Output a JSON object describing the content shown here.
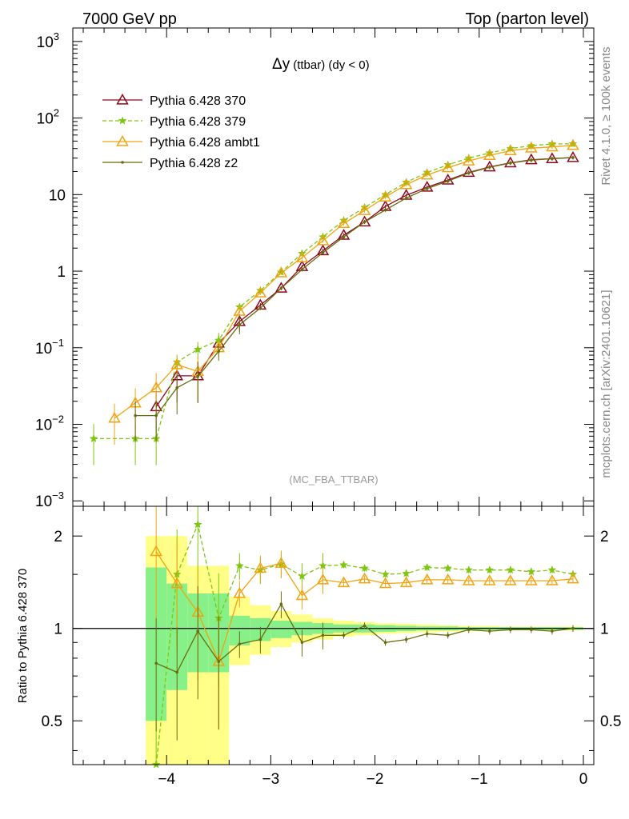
{
  "header": {
    "energy_label": "7000 GeV pp",
    "process_label": "Top (parton level)"
  },
  "side_labels": {
    "rivet": "Rivet 4.1.0, ≥ 100k events",
    "mcplots": "mcplots.cern.ch [arXiv:2401.10621]"
  },
  "chart_data": [
    {
      "type": "line",
      "panel": "main",
      "title_main": "Δy",
      "title_sub": "(ttbar) (dy < 0)",
      "watermark": "(MC_FBA_TTBAR)",
      "yscale": "log",
      "ylim": [
        0.00085,
        1500
      ],
      "xlim": [
        -4.9,
        0.1
      ],
      "y_ticks": [
        {
          "v": 0.001,
          "base": "10",
          "exp": "−3"
        },
        {
          "v": 0.01,
          "base": "10",
          "exp": "−2"
        },
        {
          "v": 0.1,
          "base": "10",
          "exp": "−1"
        },
        {
          "v": 1,
          "base": "1",
          "exp": ""
        },
        {
          "v": 10,
          "base": "10",
          "exp": ""
        },
        {
          "v": 100,
          "base": "10",
          "exp": "2"
        },
        {
          "v": 1000,
          "base": "10",
          "exp": "3"
        }
      ],
      "series": [
        {
          "name": "Pythia 6.428 370",
          "color": "#8b0a1e",
          "marker": "triangle",
          "dash": "",
          "x": [
            -4.1,
            -3.9,
            -3.7,
            -3.5,
            -3.3,
            -3.1,
            -2.9,
            -2.7,
            -2.5,
            -2.3,
            -2.1,
            -1.9,
            -1.7,
            -1.5,
            -1.3,
            -1.1,
            -0.9,
            -0.7,
            -0.5,
            -0.3,
            -0.1
          ],
          "y": [
            0.017,
            0.043,
            0.043,
            0.115,
            0.22,
            0.36,
            0.6,
            1.15,
            1.85,
            2.95,
            4.4,
            7.0,
            9.8,
            12.5,
            15.5,
            19.5,
            23.0,
            26.0,
            28.5,
            29.5,
            30.5
          ]
        },
        {
          "name": "Pythia 6.428 379",
          "color": "#7ec60f",
          "marker": "star",
          "dash": "5,3",
          "x": [
            -4.7,
            -4.3,
            -4.1,
            -3.9,
            -3.7,
            -3.5,
            -3.3,
            -3.1,
            -2.9,
            -2.7,
            -2.5,
            -2.3,
            -2.1,
            -1.9,
            -1.7,
            -1.5,
            -1.3,
            -1.1,
            -0.9,
            -0.7,
            -0.5,
            -0.3,
            -0.1
          ],
          "y": [
            0.0065,
            0.0065,
            0.0065,
            0.065,
            0.095,
            0.125,
            0.34,
            0.56,
            0.97,
            1.7,
            2.8,
            4.6,
            6.8,
            10.0,
            14.5,
            19.5,
            24.5,
            30.0,
            35.0,
            40.0,
            43.5,
            46.0,
            46.0
          ]
        },
        {
          "name": "Pythia 6.428 ambt1",
          "color": "#f0a411",
          "marker": "triangle-open-orange",
          "dash": "",
          "x": [
            -4.5,
            -4.3,
            -4.1,
            -3.9,
            -3.7,
            -3.5,
            -3.3,
            -3.1,
            -2.9,
            -2.7,
            -2.5,
            -2.3,
            -2.1,
            -1.9,
            -1.7,
            -1.5,
            -1.3,
            -1.1,
            -0.9,
            -0.7,
            -0.5,
            -0.3,
            -0.1
          ],
          "y": [
            0.012,
            0.019,
            0.03,
            0.06,
            0.049,
            0.1,
            0.3,
            0.52,
            0.95,
            1.5,
            2.5,
            4.2,
            6.2,
            9.3,
            13.5,
            18.0,
            22.5,
            27.5,
            32.5,
            37.5,
            40.5,
            42.0,
            44.0
          ]
        },
        {
          "name": "Pythia 6.428 z2",
          "color": "#6b6b0f",
          "marker": "dot",
          "dash": "",
          "x": [
            -4.3,
            -4.1,
            -3.9,
            -3.7,
            -3.5,
            -3.3,
            -3.1,
            -2.9,
            -2.7,
            -2.5,
            -2.3,
            -2.1,
            -1.9,
            -1.7,
            -1.5,
            -1.3,
            -1.1,
            -0.9,
            -0.7,
            -0.5,
            -0.3,
            -0.1
          ],
          "y": [
            0.013,
            0.013,
            0.03,
            0.042,
            0.09,
            0.2,
            0.33,
            0.6,
            1.05,
            1.75,
            2.8,
            4.4,
            6.3,
            9.0,
            12.0,
            15.0,
            19.2,
            22.8,
            25.8,
            28.2,
            29.5,
            30.5
          ]
        }
      ]
    },
    {
      "type": "line",
      "panel": "ratio",
      "ylabel": "Ratio to Pythia 6.428 370",
      "yscale": "log",
      "ylim": [
        0.36,
        2.5
      ],
      "xlim": [
        -4.9,
        0.1
      ],
      "y_ticks": [
        0.5,
        1,
        2
      ],
      "y_tick_labels": [
        "0.5",
        "1",
        "2"
      ],
      "x_ticks": [
        -4,
        -3,
        -2,
        -1,
        0
      ],
      "x_tick_labels": [
        "−4",
        "−3",
        "−2",
        "−1",
        "0"
      ],
      "band_x_edges": [
        -4.2,
        -4.0,
        -3.8,
        -3.6,
        -3.4,
        -3.2,
        -3.0,
        -2.8,
        -2.6,
        -2.4,
        -2.2,
        -2.0,
        -1.8,
        -1.6,
        -1.4,
        -1.2,
        -1.0,
        -0.8,
        -0.6,
        -0.4,
        -0.2,
        0.0
      ],
      "band_green_lo": [
        0.5,
        0.63,
        0.72,
        0.72,
        0.88,
        0.91,
        0.93,
        0.95,
        0.96,
        0.97,
        0.97,
        0.975,
        0.98,
        0.985,
        0.985,
        0.99,
        0.99,
        0.99,
        0.99,
        0.99,
        0.99
      ],
      "band_green_hi": [
        1.58,
        1.4,
        1.3,
        1.3,
        1.1,
        1.08,
        1.06,
        1.05,
        1.04,
        1.03,
        1.03,
        1.025,
        1.02,
        1.015,
        1.015,
        1.01,
        1.01,
        1.01,
        1.01,
        1.01,
        1.01
      ],
      "band_yellow_lo": [
        0.3,
        0.3,
        0.3,
        0.3,
        0.76,
        0.82,
        0.87,
        0.9,
        0.92,
        0.94,
        0.95,
        0.96,
        0.965,
        0.97,
        0.975,
        0.98,
        0.98,
        0.985,
        0.985,
        0.985,
        0.985
      ],
      "band_yellow_hi": [
        2.0,
        2.0,
        1.6,
        1.6,
        1.27,
        1.19,
        1.14,
        1.11,
        1.08,
        1.06,
        1.05,
        1.04,
        1.035,
        1.03,
        1.025,
        1.02,
        1.02,
        1.015,
        1.015,
        1.015,
        1.015
      ],
      "series": [
        {
          "name": "Pythia 6.428 379",
          "color": "#7ec60f",
          "marker": "star",
          "dash": "5,3",
          "x": [
            -4.1,
            -3.9,
            -3.7,
            -3.5,
            -3.3,
            -3.1,
            -2.9,
            -2.7,
            -2.5,
            -2.3,
            -2.1,
            -1.9,
            -1.7,
            -1.5,
            -1.3,
            -1.1,
            -0.9,
            -0.7,
            -0.5,
            -0.3,
            -0.1
          ],
          "y": [
            0.36,
            1.5,
            2.18,
            1.08,
            1.6,
            1.55,
            1.62,
            1.48,
            1.6,
            1.61,
            1.57,
            1.5,
            1.51,
            1.58,
            1.57,
            1.55,
            1.55,
            1.55,
            1.53,
            1.55,
            1.5
          ]
        },
        {
          "name": "Pythia 6.428 ambt1",
          "color": "#f0a411",
          "marker": "triangle-open-orange",
          "dash": "",
          "x": [
            -4.1,
            -3.9,
            -3.7,
            -3.5,
            -3.3,
            -3.1,
            -2.9,
            -2.7,
            -2.5,
            -2.3,
            -2.1,
            -1.9,
            -1.7,
            -1.5,
            -1.3,
            -1.1,
            -0.9,
            -0.7,
            -0.5,
            -0.3,
            -0.1
          ],
          "y": [
            1.78,
            1.4,
            1.13,
            0.78,
            1.3,
            1.57,
            1.63,
            1.28,
            1.44,
            1.41,
            1.45,
            1.4,
            1.41,
            1.44,
            1.44,
            1.43,
            1.43,
            1.43,
            1.43,
            1.43,
            1.45
          ]
        },
        {
          "name": "Pythia 6.428 z2",
          "color": "#6b6b0f",
          "marker": "dot",
          "dash": "",
          "x": [
            -4.1,
            -3.9,
            -3.7,
            -3.5,
            -3.3,
            -3.1,
            -2.9,
            -2.7,
            -2.5,
            -2.3,
            -2.1,
            -1.9,
            -1.7,
            -1.5,
            -1.3,
            -1.1,
            -0.9,
            -0.7,
            -0.5,
            -0.3,
            -0.1
          ],
          "y": [
            0.77,
            0.72,
            0.98,
            0.78,
            0.89,
            0.92,
            1.2,
            0.9,
            0.95,
            0.95,
            1.02,
            0.9,
            0.92,
            0.96,
            0.95,
            0.99,
            0.98,
            0.99,
            0.99,
            0.98,
            1.0
          ]
        }
      ]
    }
  ]
}
